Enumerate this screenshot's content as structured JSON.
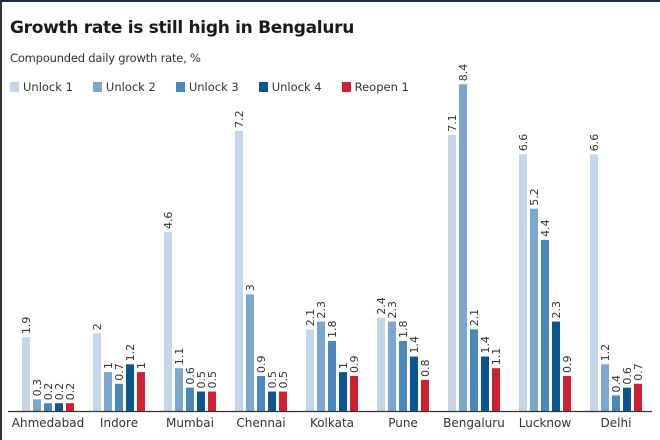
{
  "chart_data": {
    "type": "bar",
    "title": "Growth rate is still high in Bengaluru",
    "subtitle": "Compounded daily growth rate, %",
    "xlabel": "",
    "ylabel": "Compounded daily growth rate, %",
    "ylim": [
      0,
      8.4
    ],
    "grid": false,
    "legend_position": "top-left",
    "categories": [
      "Ahmedabad",
      "Indore",
      "Mumbai",
      "Chennai",
      "Kolkata",
      "Pune",
      "Bengaluru",
      "Lucknow",
      "Delhi"
    ],
    "series": [
      {
        "name": "Unlock 1",
        "color": "#c5d6e8",
        "values": [
          1.9,
          2,
          4.6,
          7.2,
          2.1,
          2.4,
          7.1,
          6.6,
          6.6
        ]
      },
      {
        "name": "Unlock 2",
        "color": "#7ba7cf",
        "values": [
          0.3,
          1,
          1.1,
          3,
          2.3,
          2.3,
          8.4,
          5.2,
          1.2
        ]
      },
      {
        "name": "Unlock 3",
        "color": "#4a88bb",
        "values": [
          0.2,
          0.7,
          0.6,
          0.9,
          1.8,
          1.8,
          2.1,
          4.4,
          0.4
        ]
      },
      {
        "name": "Unlock 4",
        "color": "#0d5590",
        "values": [
          0.2,
          1.2,
          0.5,
          0.5,
          1,
          1.4,
          1.4,
          2.3,
          0.6
        ]
      },
      {
        "name": "Reopen 1",
        "color": "#d1202f",
        "values": [
          0.2,
          1,
          0.5,
          0.5,
          0.9,
          0.8,
          1.1,
          0.9,
          0.7
        ]
      }
    ]
  }
}
